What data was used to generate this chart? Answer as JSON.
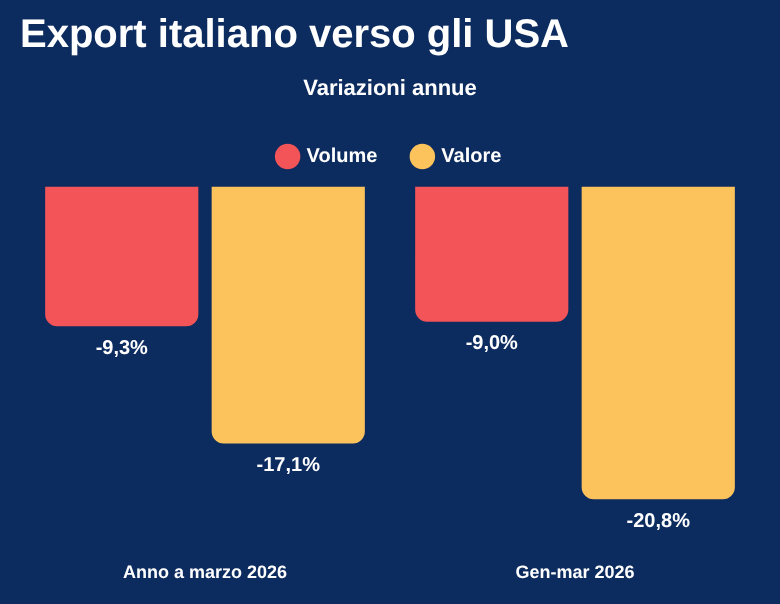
{
  "chart_data": {
    "type": "bar",
    "title": "Export italiano verso gli USA",
    "subtitle": "Variazioni annue",
    "categories": [
      "Anno a marzo 2026",
      "Gen-mar 2026"
    ],
    "series": [
      {
        "name": "Volume",
        "color": "#f25458",
        "values": [
          -9.3,
          -9.0
        ],
        "value_labels": [
          "-9,3%",
          "-9,0%"
        ]
      },
      {
        "name": "Valore",
        "color": "#fcc35c",
        "values": [
          -17.1,
          -20.8
        ],
        "value_labels": [
          "-17,1%",
          "-20,8%"
        ]
      }
    ],
    "legend": "top",
    "grid": false
  }
}
